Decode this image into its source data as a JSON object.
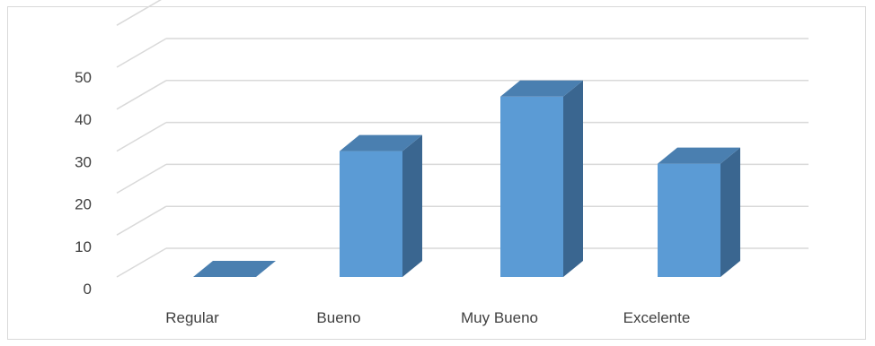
{
  "chart_data": {
    "type": "bar",
    "style": "3d-column",
    "categories": [
      "Regular",
      "Bueno",
      "Muy Bueno",
      "Excelente"
    ],
    "values": [
      0,
      30,
      43,
      27
    ],
    "ylim": [
      0,
      50
    ],
    "yticks": [
      0,
      10,
      20,
      30,
      40,
      50
    ],
    "grid": true,
    "legend": "none",
    "colors": {
      "bar_front": "#5b9bd5",
      "bar_side": "#3a6690",
      "bar_top": "#4a7fb0",
      "grid": "#d9d9d9",
      "text": "#404040"
    }
  }
}
